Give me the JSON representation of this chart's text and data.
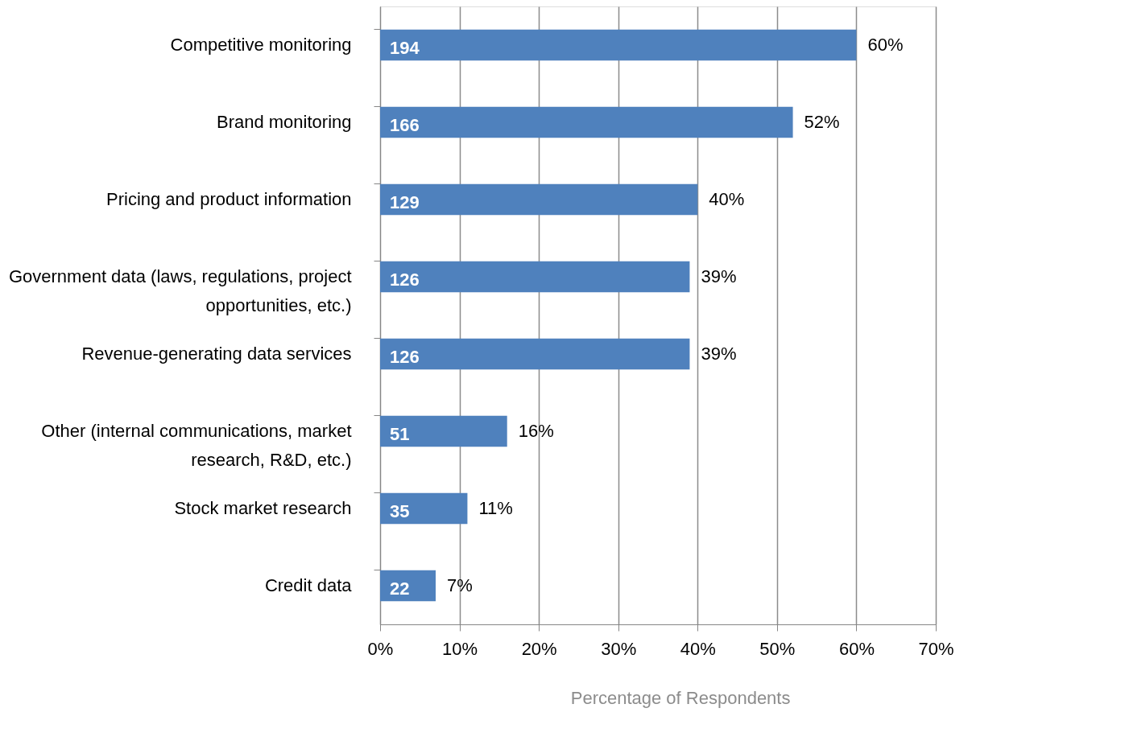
{
  "chart_data": {
    "type": "bar",
    "orientation": "horizontal",
    "xlabel": "Percentage of Respondents",
    "categories": [
      "Competitive monitoring",
      "Brand monitoring",
      "Pricing and product information",
      "Government data (laws, regulations, project opportunities, etc.)",
      "Revenue-generating data services",
      "Other (internal communications, market research, R&D, etc.)",
      "Stock market research",
      "Credit data"
    ],
    "values": [
      60,
      52,
      40,
      39,
      39,
      16,
      11,
      7
    ],
    "value_labels": [
      "60%",
      "52%",
      "40%",
      "39%",
      "39%",
      "16%",
      "11%",
      "7%"
    ],
    "color": "#4f81bd",
    "xlim": [
      0,
      70
    ],
    "xticks": [
      {
        "value": 0,
        "label": "0%"
      },
      {
        "value": 10,
        "label": "10%"
      },
      {
        "value": 20,
        "label": "20%"
      },
      {
        "value": 30,
        "label": "30%"
      },
      {
        "value": 40,
        "label": "40%"
      },
      {
        "value": 50,
        "label": "50%"
      },
      {
        "value": 60,
        "label": "60%"
      },
      {
        "value": 70,
        "label": "70%"
      }
    ],
    "annotations": [
      "194",
      "166",
      "129",
      "126",
      "126",
      "51",
      "35",
      "22"
    ],
    "grid": "x"
  }
}
